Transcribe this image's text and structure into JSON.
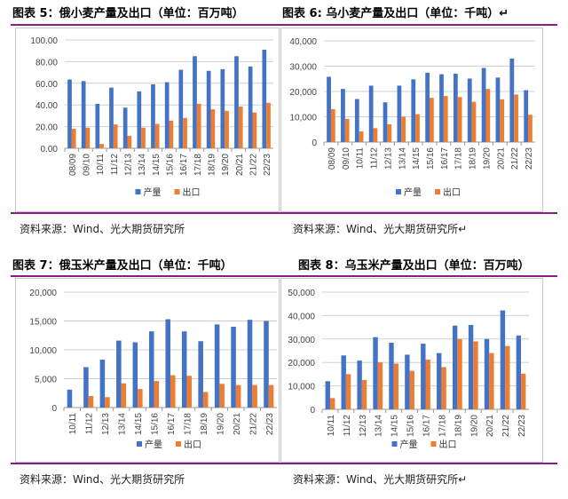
{
  "colors": {
    "production": "#4472c4",
    "export": "#ed7d31",
    "rule": "#8b1a8b"
  },
  "figures": [
    {
      "title": "图表 5：俄小麦产量及出口（单位：百万吨）",
      "source": "资料来源：Wind、光大期货研究所"
    },
    {
      "title": "图表 6: 乌小麦产量及出口（单位：千吨）↵",
      "source": "资料来源：Wind、光大期货研究所↵"
    },
    {
      "title": "图表 7：俄玉米产量及出口（单位：千吨）",
      "source": "资料来源：Wind、光大期货研究所"
    },
    {
      "title": "图表 8：乌玉米产量及出口（单位：百万吨）",
      "source": "资料来源：Wind、光大期货研究所↵"
    }
  ],
  "chart_data": [
    {
      "type": "bar",
      "categories": [
        "08/09",
        "09/10",
        "10/11",
        "11/12",
        "12/13",
        "13/14",
        "14/15",
        "15/16",
        "16/17",
        "17/18",
        "18/19",
        "19/20",
        "20/21",
        "21/22",
        "22/23"
      ],
      "ylim": [
        0,
        100
      ],
      "yticks": [
        "0.00",
        "20.00",
        "40.00",
        "60.00",
        "80.00",
        "100.00"
      ],
      "grid": true,
      "legend": "bottom",
      "series": [
        {
          "name": "产量",
          "values": [
            63.5,
            62,
            41,
            56,
            37.5,
            52.5,
            59,
            61,
            72.5,
            85,
            71.5,
            73,
            85,
            75.5,
            91
          ]
        },
        {
          "name": "出口",
          "values": [
            18,
            19,
            4,
            22,
            11.5,
            19,
            22.5,
            25.5,
            28,
            41,
            36,
            34.5,
            38.5,
            33,
            42
          ]
        }
      ]
    },
    {
      "type": "bar",
      "categories": [
        "08/09",
        "09/10",
        "10/11",
        "11/12",
        "12/13",
        "13/14",
        "14/15",
        "15/16",
        "16/17",
        "17/18",
        "18/19",
        "19/20",
        "20/21",
        "21/22",
        "22/23"
      ],
      "ylim": [
        0,
        40000
      ],
      "yticks": [
        "0",
        "10,000",
        "20,000",
        "30,000",
        "40,000"
      ],
      "grid": true,
      "legend": "bottom",
      "series": [
        {
          "name": "产量",
          "values": [
            25800,
            21000,
            17000,
            22300,
            15700,
            22300,
            24800,
            27400,
            26800,
            27000,
            25100,
            29300,
            25500,
            33000,
            20500
          ]
        },
        {
          "name": "出口",
          "values": [
            13000,
            9200,
            4200,
            5500,
            7000,
            10000,
            11000,
            17500,
            18200,
            17800,
            15900,
            21000,
            16900,
            18800,
            10800
          ]
        }
      ]
    },
    {
      "type": "bar",
      "categories": [
        "10/11",
        "11/12",
        "12/13",
        "13/14",
        "14/15",
        "15/16",
        "16/17",
        "17/18",
        "18/19",
        "19/20",
        "20/21",
        "21/22",
        "22/23"
      ],
      "ylim": [
        0,
        20000
      ],
      "yticks": [
        "0",
        "5,000",
        "10,000",
        "15,000",
        "20,000"
      ],
      "grid": true,
      "legend": "bottom",
      "series": [
        {
          "name": "产量",
          "values": [
            3100,
            7000,
            8300,
            11600,
            11300,
            13200,
            15300,
            13200,
            11500,
            14400,
            14000,
            15200,
            15000
          ]
        },
        {
          "name": "出口",
          "values": [
            0,
            2000,
            1800,
            4200,
            3200,
            4600,
            5600,
            5500,
            2700,
            4100,
            3900,
            3900,
            3900
          ]
        }
      ]
    },
    {
      "type": "bar",
      "categories": [
        "10/11",
        "11/12",
        "12/13",
        "13/14",
        "14/15",
        "15/16",
        "16/17",
        "17/18",
        "18/19",
        "19/20",
        "20/21",
        "21/22",
        "22/23"
      ],
      "ylim": [
        0,
        50000
      ],
      "yticks": [
        "0",
        "10,000",
        "20,000",
        "30,000",
        "40,000",
        "50,000"
      ],
      "grid": true,
      "legend": "bottom",
      "series": [
        {
          "name": "产量",
          "values": [
            12000,
            23000,
            20800,
            30800,
            28400,
            23300,
            28000,
            24000,
            35700,
            36000,
            30000,
            42200,
            31500
          ]
        },
        {
          "name": "出口",
          "values": [
            4800,
            15000,
            12500,
            20000,
            19500,
            16400,
            21200,
            18000,
            30000,
            29000,
            24000,
            27000,
            15200
          ]
        }
      ]
    }
  ]
}
